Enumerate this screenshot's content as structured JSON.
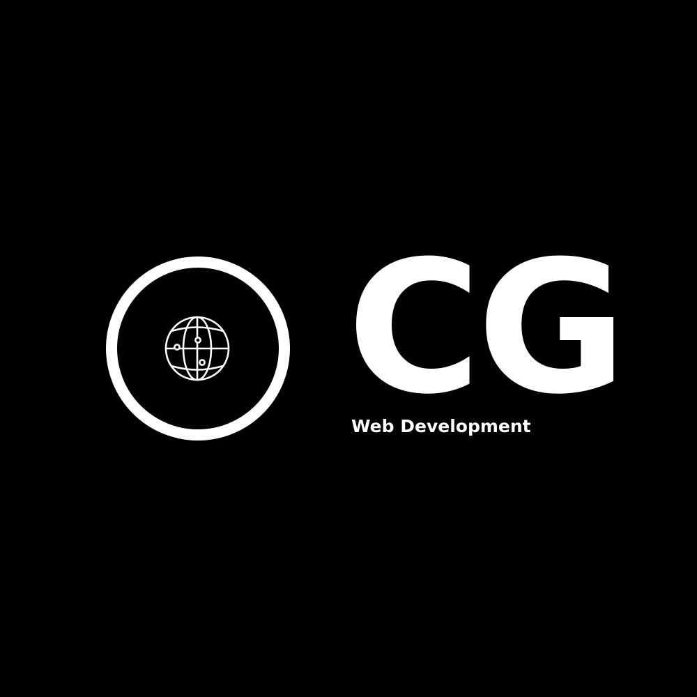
{
  "logo": {
    "wordmark": "CG",
    "tagline": "Web Development",
    "emblem_icon": "globe-network-icon"
  },
  "colors": {
    "background": "#000000",
    "foreground": "#ffffff"
  }
}
